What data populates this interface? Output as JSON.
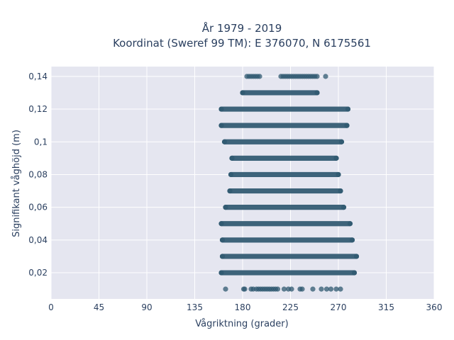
{
  "chart_data": {
    "type": "scatter",
    "title_line1": "År 1979 - 2019",
    "title_line2": "Koordinat (Sweref 99 TM): E 376070, N 6175561",
    "xlabel": "Vågriktning (grader)",
    "ylabel": "Signifikant våghöjd (m)",
    "xlim": [
      0,
      360
    ],
    "ylim": [
      0.004,
      0.146
    ],
    "xticks": [
      0,
      45,
      90,
      135,
      180,
      225,
      270,
      315,
      360
    ],
    "xtick_labels": [
      "0",
      "45",
      "90",
      "135",
      "180",
      "225",
      "270",
      "315",
      "360"
    ],
    "yticks": [
      0.02,
      0.04,
      0.06,
      0.08,
      0.1,
      0.12,
      0.14
    ],
    "ytick_labels": [
      "0,02",
      "0,04",
      "0,06",
      "0,08",
      "0,1",
      "0,12",
      "0,14"
    ],
    "grid": true,
    "marker_color": "#2f5870",
    "plot_background": "#e5e6f0",
    "bands": [
      {
        "y": 0.01,
        "x": [
          164,
          181,
          182,
          188,
          190,
          193,
          195,
          197,
          199,
          201,
          203,
          205,
          207,
          209,
          211,
          213,
          219,
          223,
          226,
          234,
          236,
          246,
          254,
          259,
          263,
          268,
          272
        ]
      },
      {
        "y": 0.02,
        "x_min": 160,
        "x_max": 285
      },
      {
        "y": 0.03,
        "x_min": 161,
        "x_max": 287
      },
      {
        "y": 0.04,
        "x_min": 161,
        "x_max": 283
      },
      {
        "y": 0.05,
        "x_min": 160,
        "x_max": 281
      },
      {
        "y": 0.06,
        "x_min": 164,
        "x_max": 275
      },
      {
        "y": 0.07,
        "x_min": 168,
        "x_max": 272
      },
      {
        "y": 0.08,
        "x_min": 169,
        "x_max": 270
      },
      {
        "y": 0.09,
        "x_min": 170,
        "x_max": 268
      },
      {
        "y": 0.1,
        "x_min": 163,
        "x_max": 273
      },
      {
        "y": 0.11,
        "x_min": 160,
        "x_max": 278
      },
      {
        "y": 0.12,
        "x_min": 160,
        "x_max": 279
      },
      {
        "y": 0.13,
        "x_min": 180,
        "x_max": 250
      },
      {
        "y": 0.14,
        "x": [
          184,
          186,
          188,
          190,
          192,
          194,
          196,
          216,
          218,
          220,
          222,
          224,
          226,
          228,
          230,
          232,
          234,
          236,
          238,
          240,
          242,
          244,
          246,
          248,
          250,
          258
        ]
      }
    ]
  }
}
